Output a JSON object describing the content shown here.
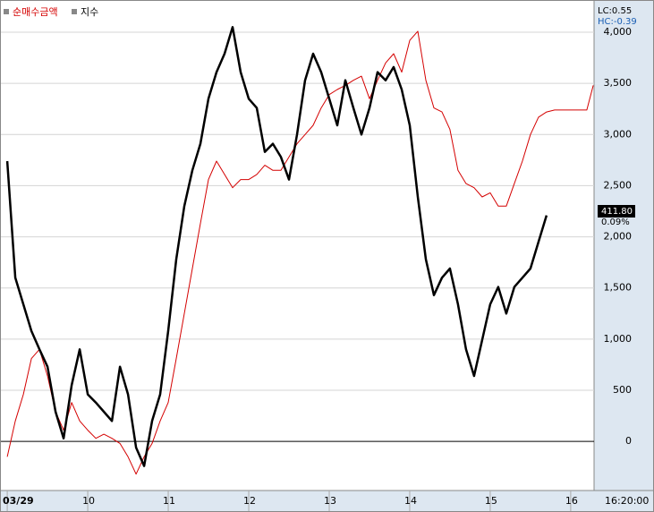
{
  "chart_data": {
    "type": "line",
    "legend": [
      "순매수금액",
      "지수"
    ],
    "lc": "LC:0.55",
    "hc": "HC:-0.39",
    "current_value": "411.80",
    "current_change": "0.09%",
    "time_label": "16:20:00",
    "x": [
      9.0,
      9.1,
      9.2,
      9.3,
      9.4,
      9.5,
      9.6,
      9.7,
      9.8,
      9.9,
      10.0,
      10.1,
      10.2,
      10.3,
      10.4,
      10.5,
      10.6,
      10.7,
      10.8,
      10.9,
      11.0,
      11.1,
      11.2,
      11.3,
      11.4,
      11.5,
      11.6,
      11.7,
      11.8,
      11.9,
      12.0,
      12.1,
      12.2,
      12.3,
      12.4,
      12.5,
      12.6,
      12.7,
      12.8,
      12.9,
      13.0,
      13.1,
      13.2,
      13.3,
      13.4,
      13.5,
      13.6,
      13.7,
      13.8,
      13.9,
      14.0,
      14.1,
      14.2,
      14.3,
      14.4,
      14.5,
      14.6,
      14.7,
      14.8,
      14.9,
      15.0,
      15.1,
      15.2,
      15.3,
      15.4,
      15.5,
      15.6,
      15.7,
      15.8,
      15.9,
      16.0,
      16.1,
      16.2,
      16.28
    ],
    "series": [
      {
        "name": "순매수금액",
        "color": "#d40000",
        "width": 1,
        "values": [
          -150,
          200,
          460,
          810,
          900,
          640,
          290,
          110,
          380,
          200,
          110,
          30,
          70,
          30,
          -20,
          -150,
          -320,
          -150,
          -20,
          200,
          380,
          810,
          1250,
          1690,
          2130,
          2560,
          2740,
          2610,
          2480,
          2560,
          2560,
          2610,
          2700,
          2650,
          2650,
          2780,
          2910,
          3000,
          3090,
          3260,
          3390,
          3440,
          3480,
          3530,
          3570,
          3350,
          3530,
          3700,
          3790,
          3610,
          3920,
          4010,
          3530,
          3260,
          3220,
          3050,
          2650,
          2520,
          2480,
          2390,
          2430,
          2300,
          2300,
          2520,
          2740,
          3000,
          3170,
          3220,
          3240,
          3240,
          3240,
          3240,
          3240,
          3480
        ]
      },
      {
        "name": "지수",
        "color": "#000000",
        "width": 2.5,
        "values": [
          2740,
          1600,
          1340,
          1080,
          900,
          730,
          290,
          30,
          550,
          900,
          460,
          380,
          290,
          200,
          730,
          460,
          -60,
          -240,
          200,
          460,
          1080,
          1780,
          2300,
          2650,
          2910,
          3350,
          3610,
          3790,
          4050,
          3610,
          3350,
          3260,
          2830,
          2910,
          2780,
          2560,
          3000,
          3530,
          3790,
          3610,
          3350,
          3090,
          3530,
          3260,
          3000,
          3260,
          3610,
          3530,
          3660,
          3440,
          3090,
          2390,
          1780,
          1430,
          1600,
          1690,
          1340,
          900,
          640,
          990,
          1340,
          1510,
          1250,
          1510,
          1600,
          1690,
          1950,
          2210,
          null,
          null,
          null,
          null,
          null,
          null
        ]
      }
    ],
    "xlim": [
      8.91,
      16.29
    ],
    "xticks": [
      {
        "value": 9,
        "label": "03/29"
      },
      10,
      11,
      12,
      13,
      14,
      15,
      16
    ],
    "ylim": [
      -480,
      4245
    ],
    "yticks": [
      0,
      500,
      {
        "value": 1000,
        "label": "1,000"
      },
      {
        "value": 1500,
        "label": "1,500"
      },
      {
        "value": 2000,
        "label": "2,000"
      },
      {
        "value": 2500,
        "label": "2,500"
      },
      {
        "value": 3000,
        "label": "3,000"
      },
      {
        "value": 3500,
        "label": "3,500"
      },
      {
        "value": 4000,
        "label": "4,000"
      }
    ],
    "grid": true
  }
}
